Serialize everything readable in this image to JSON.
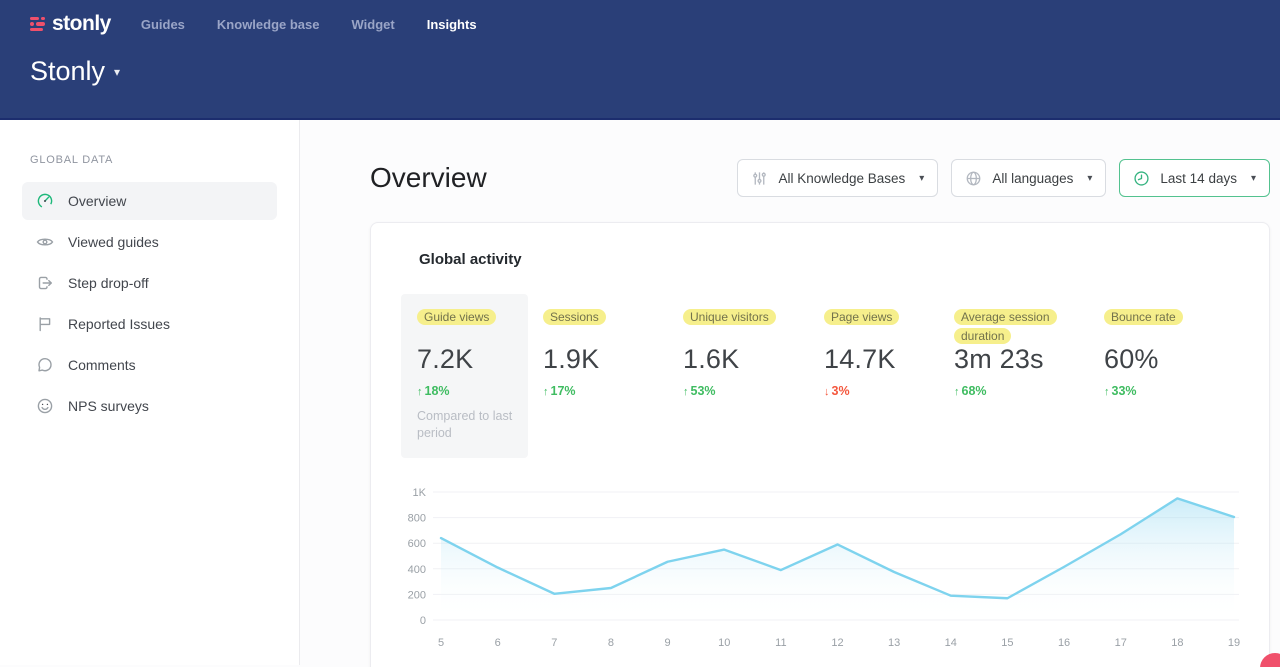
{
  "nav": {
    "logo_text": "stonly",
    "items": [
      {
        "label": "Guides",
        "active": false
      },
      {
        "label": "Knowledge base",
        "active": false
      },
      {
        "label": "Widget",
        "active": false
      },
      {
        "label": "Insights",
        "active": true
      }
    ],
    "workspace_title": "Stonly",
    "workspace_caret": "▾"
  },
  "sidebar": {
    "section_label": "GLOBAL DATA",
    "items": [
      {
        "label": "Overview",
        "icon": "gauge-icon",
        "active": true
      },
      {
        "label": "Viewed guides",
        "icon": "eye-icon",
        "active": false
      },
      {
        "label": "Step drop-off",
        "icon": "step-dropoff-icon",
        "active": false
      },
      {
        "label": "Reported Issues",
        "icon": "flag-icon",
        "active": false
      },
      {
        "label": "Comments",
        "icon": "comment-icon",
        "active": false
      },
      {
        "label": "NPS surveys",
        "icon": "smiley-icon",
        "active": false
      }
    ]
  },
  "main": {
    "page_title": "Overview",
    "filters": [
      {
        "label": "All Knowledge Bases",
        "icon": "sliders-icon",
        "active": false,
        "caret": "▾"
      },
      {
        "label": "All languages",
        "icon": "globe-icon",
        "active": false,
        "caret": "▾"
      },
      {
        "label": "Last 14 days",
        "icon": "clock-icon",
        "active": true,
        "caret": "▾"
      }
    ],
    "card": {
      "title": "Global activity",
      "metrics": [
        {
          "label": "Guide views",
          "value": "7.2K",
          "delta": "18%",
          "direction": "up",
          "note": "Compared to last period",
          "selected": true
        },
        {
          "label": "Sessions",
          "value": "1.9K",
          "delta": "17%",
          "direction": "up",
          "selected": false
        },
        {
          "label": "Unique visitors",
          "value": "1.6K",
          "delta": "53%",
          "direction": "up",
          "selected": false
        },
        {
          "label": "Page views",
          "value": "14.7K",
          "delta": "3%",
          "direction": "down",
          "selected": false
        },
        {
          "label": "Average session duration",
          "value": "3m 23s",
          "delta": "68%",
          "direction": "up",
          "selected": false
        },
        {
          "label": "Bounce rate",
          "value": "60%",
          "delta": "33%",
          "direction": "up",
          "selected": false
        }
      ]
    }
  },
  "chart_data": {
    "type": "area",
    "title": "Global activity",
    "x": [
      5,
      6,
      7,
      8,
      9,
      10,
      11,
      12,
      13,
      14,
      15,
      16,
      17,
      18,
      19
    ],
    "values": [
      640,
      410,
      205,
      250,
      455,
      550,
      390,
      590,
      375,
      190,
      170,
      415,
      670,
      950,
      805
    ],
    "xlabel": "",
    "ylabel": "",
    "ylim": [
      0,
      1000
    ],
    "yticks": [
      0,
      200,
      400,
      600,
      800,
      1000
    ],
    "ytick_labels": [
      "0",
      "200",
      "400",
      "600",
      "800",
      "1K"
    ],
    "grid": true,
    "legend": "none",
    "line_color": "#7ed3ee",
    "fill_top": "rgba(141,214,240,0.45)",
    "fill_bottom": "rgba(255,255,255,0)",
    "grid_color": "#f0f1f4",
    "axis_text_color": "#9aa0a6"
  },
  "icons": {
    "up_arrow": "↑",
    "down_arrow": "↓"
  },
  "colors": {
    "brand_pink": "#f0506b",
    "nav_bg": "#2a3f78",
    "nav_border": "#1c2d6e",
    "accent_green": "#1db87a",
    "delta_green": "#3fbc61",
    "delta_red": "#f4573d",
    "highlight_yellow": "#f6ef8c"
  }
}
